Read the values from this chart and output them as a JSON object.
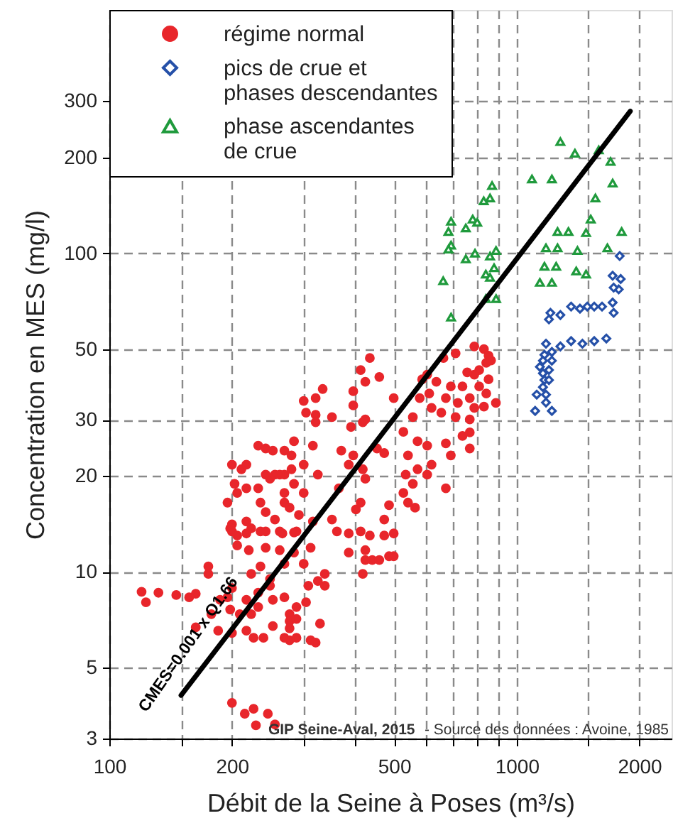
{
  "chart_data": {
    "type": "scatter",
    "xlabel": "Débit de la Seine à Poses (m³/s)",
    "ylabel": "Concentration en MES (mg/l)",
    "xlim": [
      100,
      2400
    ],
    "ylim": [
      3,
      580
    ],
    "log": "xy",
    "grid": true,
    "legend": "top left",
    "xticks": [
      100,
      {
        "value": 150,
        "label": null
      },
      200,
      {
        "value": 300,
        "label": null
      },
      {
        "value": 400,
        "label": null
      },
      500,
      {
        "value": 600,
        "label": null
      },
      {
        "value": 700,
        "label": null
      },
      {
        "value": 800,
        "label": null
      },
      {
        "value": 900,
        "label": null
      },
      1000,
      {
        "value": 1500,
        "label": null
      },
      2000
    ],
    "yticks": [
      3,
      5,
      10,
      20,
      30,
      50,
      100,
      200,
      300
    ],
    "series": [
      {
        "name": "régime normal",
        "marker": "circle",
        "color": "#e8262b",
        "x": [
          787,
          831,
          853,
          842,
          809,
          787,
          865,
          708,
          756,
          661,
          603,
          586,
          635,
          689,
          736,
          809,
          853,
          610,
          670,
          717,
          767,
          842,
          889,
          578,
          618,
          653,
          708,
          787,
          767,
          556,
          527,
          571,
          603,
          670,
          736,
          767,
          689,
          618,
          571,
          541,
          534,
          556,
          603,
          670,
          527,
          541,
          563,
          767,
          831,
          436,
          414,
          460,
          425,
          397,
          397,
          352,
          419,
          425,
          392,
          371,
          454,
          473,
          397,
          387,
          425,
          419,
          414,
          473,
          366,
          325,
          300,
          321,
          321,
          334,
          304,
          321,
          316,
          284,
          269,
          300,
          284,
          300,
          269,
          269,
          352,
          403,
          486,
          499,
          200,
          211,
          217,
          203,
          206,
          217,
          232,
          242,
          252,
          242,
          248,
          255,
          262,
          269,
          235,
          242,
          255,
          280,
          280,
          277,
          195,
          200,
          217,
          223,
          198,
          206,
          232,
          235,
          262,
          292,
          288,
          316,
          200,
          217,
          242,
          266,
          284,
          206,
          220,
          242,
          262,
          284,
          235,
          223,
          248,
          269,
          312,
          300,
          362,
          387,
          414,
          436,
          473,
          499,
          387,
          425,
          425,
          442,
          460,
          486,
          499,
          419,
          338,
          325,
          308,
          338,
          248,
          232,
          217,
          195,
          187,
          200,
          175,
          175,
          120,
          123,
          132,
          146,
          157,
          163,
          178,
          163,
          185,
          198,
          209,
          223,
          217,
          200,
          226,
          239,
          252,
          232,
          269,
          277,
          277,
          277,
          277,
          288,
          288,
          288,
          304,
          312,
          321,
          329,
          269,
          252,
          200,
          215,
          226,
          245,
          255,
          229
        ],
        "values": [
          51,
          50,
          47.7,
          45.3,
          43,
          41.6,
          46.1,
          48.5,
          42.3,
          46.9,
          41.6,
          40.2,
          39.5,
          38.2,
          38.2,
          38.2,
          40.2,
          36.3,
          35.1,
          33.9,
          35.1,
          36.3,
          33.9,
          35.1,
          32.7,
          31.6,
          30.6,
          32.7,
          30.1,
          30.6,
          27.5,
          25.7,
          24.9,
          25.3,
          26.7,
          24.4,
          23.2,
          21.7,
          21,
          23.2,
          20.2,
          18.9,
          20.2,
          18.3,
          17.7,
          16.5,
          15.9,
          27.4,
          33,
          46.9,
          43,
          40.9,
          39.5,
          36.9,
          33.3,
          30.6,
          29.5,
          30.1,
          28.5,
          24,
          24.4,
          23.6,
          23.2,
          21.7,
          19.6,
          21,
          16.5,
          14.6,
          18.3,
          20.2,
          34.4,
          31.1,
          35.1,
          37.5,
          31.6,
          29.5,
          24.9,
          25.7,
          24,
          21.7,
          18.9,
          17.7,
          16.5,
          20.2,
          14.6,
          15.7,
          16.2,
          35.1,
          21.7,
          21,
          21.7,
          18.9,
          17.7,
          18.3,
          24.9,
          24.4,
          24,
          20.2,
          19.6,
          20.2,
          20.2,
          17.7,
          16.5,
          15.4,
          14.6,
          21,
          23.2,
          15.9,
          16.5,
          14.1,
          14.4,
          13.7,
          13.7,
          13,
          18.3,
          13.4,
          13.4,
          15.1,
          13.4,
          14.4,
          13.4,
          13.2,
          13.4,
          13.2,
          13.3,
          12.1,
          11.7,
          11.9,
          11.7,
          11.5,
          10.4,
          9.86,
          9.5,
          10.6,
          11.9,
          10.6,
          13.4,
          13.2,
          13.4,
          13,
          13,
          13.2,
          11.5,
          11.7,
          10.9,
          10.9,
          10.9,
          11.2,
          11.2,
          9.86,
          9.86,
          9.37,
          9.05,
          9.05,
          9.05,
          8.6,
          8.17,
          8.32,
          8.17,
          8.9,
          10.4,
          9.86,
          8.66,
          8.03,
          8.6,
          8.46,
          8.32,
          8.54,
          7.37,
          6.7,
          6.54,
          7.62,
          7.37,
          7.37,
          6.54,
          6.43,
          6.21,
          6.21,
          8.17,
          7.76,
          8.32,
          7.37,
          7,
          6.65,
          6.1,
          7.76,
          7.12,
          6.21,
          8.03,
          6.1,
          6,
          6.88,
          6.21,
          6.76,
          3.88,
          3.59,
          3.72,
          3.59,
          3.32,
          3.3
        ]
      },
      {
        "name": "pics de crue et phases descendantes",
        "marker": "diamond",
        "color": "#2550a8",
        "x": [
          1790,
          1720,
          1800,
          1780,
          1730,
          1720,
          1730,
          1620,
          1550,
          1490,
          1430,
          1360,
          1280,
          1210,
          1200,
          1660,
          1550,
          1450,
          1360,
          1280,
          1220,
          1180,
          1170,
          1160,
          1140,
          1160,
          1170,
          1200,
          1120,
          1180,
          1110,
          1180,
          1220,
          1220,
          1200,
          1160
        ],
        "values": [
          98,
          85,
          83,
          77,
          78,
          70,
          65,
          68,
          68,
          68,
          67,
          68,
          64,
          65,
          62,
          54,
          53,
          52,
          53,
          51,
          49,
          52,
          48,
          46,
          44,
          42,
          40,
          40,
          36,
          36,
          32,
          34,
          32,
          46,
          43,
          38
        ]
      },
      {
        "name": "phase ascendantes de crue",
        "marker": "triangle",
        "color": "#1f9a3c",
        "x": [
          1280,
          1390,
          1590,
          1700,
          1720,
          1090,
          1220,
          1560,
          870,
          860,
          830,
          690,
          680,
          750,
          780,
          800,
          1260,
          1340,
          1480,
          1520,
          1810,
          690,
          680,
          750,
          790,
          860,
          890,
          1180,
          1260,
          1410,
          1670,
          1170,
          1250,
          1400,
          1480,
          1140,
          1220,
          660,
          840,
          860,
          880,
          840,
          890,
          690
        ],
        "values": [
          224,
          206,
          211,
          194,
          166,
          171,
          171,
          149,
          163,
          149,
          146,
          126,
          117,
          120,
          128,
          125,
          117,
          117,
          116,
          128,
          117,
          106,
          103,
          96,
          100,
          98,
          102,
          104,
          104,
          102,
          104,
          91,
          91,
          88,
          86,
          81,
          81,
          82,
          86,
          84,
          90,
          72,
          72,
          63
        ]
      },
      {
        "type": "line",
        "color": "#000000",
        "line_style": "solid",
        "x": [
          150,
          1900
        ],
        "values": [
          4.1,
          279
        ]
      }
    ],
    "annotations": [
      "CMES=0.001 x Q1.66",
      "GIP Seine-Aval, 2015",
      "- Source des données : Avoine, 1985"
    ]
  }
}
